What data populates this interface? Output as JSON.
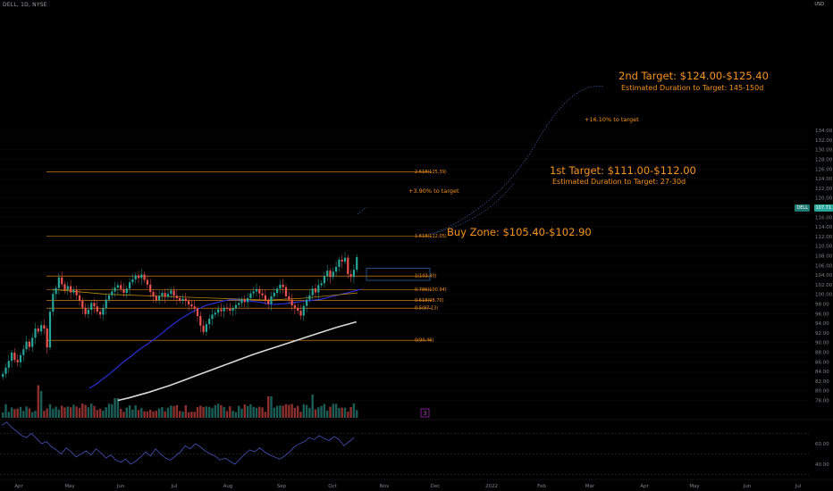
{
  "header": {
    "symbol": "DELL, 1D, NYSE",
    "currency": "USD"
  },
  "price_tag": {
    "symbol": "DELL",
    "price": "107.71"
  },
  "annotations": {
    "target2_title": "2nd Target: $124.00-$125.40",
    "target2_duration": "Estimated Duration to Target: 145-150d",
    "target1_title": "1st Target: $111.00-$112.00",
    "target1_duration": "Estimated Duration to Target: 27-30d",
    "buy_zone": "Buy Zone: $105.40-$102.90",
    "pct_16": "+16.10% to target",
    "pct_39": "+3.90% to target"
  },
  "indicator_badge": "3",
  "colors": {
    "up": "#26a69a",
    "down": "#ef5350",
    "fib": "#f7931e",
    "ma_blue": "#2a2fd6",
    "ma_white": "#d9d9d9",
    "ma_orange": "#b8860b",
    "rsi": "#4a5fd0",
    "buy_box": "#2e5f9e"
  },
  "chart_data": {
    "type": "candlestick",
    "x_ticks": [
      "Apr",
      "May",
      "Jun",
      "Jul",
      "Aug",
      "Sep",
      "Oct",
      "Nov",
      "Dec",
      "2022",
      "Feb",
      "Mar",
      "Apr",
      "May",
      "Jun",
      "Jul"
    ],
    "y_ticks": [
      78.0,
      80.0,
      82.0,
      84.0,
      86.0,
      88.0,
      90.0,
      92.0,
      94.0,
      96.0,
      98.0,
      100.0,
      102.0,
      104.0,
      106.0,
      108.0,
      110.0,
      112.0,
      114.0,
      116.0,
      118.0,
      120.0,
      122.0,
      124.0,
      126.0,
      128.0,
      130.0,
      132.0,
      134.0
    ],
    "rsi_ticks": [
      40.0,
      60.0
    ],
    "ylim": [
      77,
      135
    ],
    "fib_levels": [
      {
        "label": "2.618(125.39)",
        "value": 125.39
      },
      {
        "label": "1.618(112.05)",
        "value": 112.05
      },
      {
        "label": "1(103.80)",
        "value": 103.8
      },
      {
        "label": "0.786(100.94)",
        "value": 100.94
      },
      {
        "label": "0.618(98.70)",
        "value": 98.7
      },
      {
        "label": "0.5(97.13)",
        "value": 97.13
      },
      {
        "label": "0(90.46)",
        "value": 90.46
      }
    ],
    "buy_zone": [
      102.9,
      105.4
    ],
    "targets": [
      {
        "name": "1st Target",
        "low": 111.0,
        "high": 112.0
      },
      {
        "name": "2nd Target",
        "low": 124.0,
        "high": 125.4
      }
    ],
    "close": [
      83.5,
      84.8,
      86.2,
      87.9,
      86.4,
      85.9,
      87.4,
      88.6,
      90.2,
      89.1,
      91.0,
      92.9,
      92.3,
      93.6,
      92.9,
      89.0,
      96.4,
      100.1,
      101.3,
      103.5,
      102.1,
      101.0,
      101.7,
      100.4,
      100.9,
      99.8,
      98.7,
      97.2,
      95.9,
      96.8,
      98.2,
      97.5,
      96.4,
      95.8,
      97.1,
      98.9,
      99.8,
      100.6,
      101.4,
      101.9,
      101.1,
      100.3,
      101.2,
      102.5,
      103.1,
      103.9,
      103.4,
      104.1,
      103.0,
      102.0,
      100.5,
      99.6,
      98.8,
      99.7,
      100.3,
      99.5,
      100.1,
      100.8,
      99.7,
      99.2,
      98.7,
      99.1,
      98.6,
      97.9,
      97.5,
      97.0,
      95.5,
      93.5,
      92.2,
      93.8,
      94.9,
      95.8,
      96.2,
      96.9,
      96.5,
      97.2,
      97.0,
      96.6,
      97.1,
      97.8,
      98.2,
      98.9,
      98.4,
      99.2,
      100.2,
      100.6,
      101.1,
      100.2,
      99.8,
      98.7,
      98.0,
      99.6,
      100.3,
      101.2,
      102.0,
      101.5,
      99.6,
      98.9,
      97.7,
      97.2,
      96.6,
      95.6,
      97.6,
      98.9,
      99.8,
      101.2,
      100.4,
      101.9,
      102.3,
      103.8,
      104.9,
      103.6,
      104.7,
      105.7,
      107.2,
      106.8,
      107.6,
      104.2,
      103.6,
      105.1,
      107.7
    ],
    "ma50": [
      80.5,
      81.0,
      81.5,
      82.2,
      82.8,
      83.4,
      84.1,
      84.8,
      85.5,
      86.2,
      86.8,
      87.4,
      88.1,
      88.7,
      89.3,
      89.8,
      90.4,
      91.0,
      91.6,
      92.3,
      93.0,
      93.6,
      94.2,
      94.8,
      95.3,
      95.8,
      96.3,
      96.7,
      97.1,
      97.5,
      97.8,
      98.0,
      98.2,
      98.4,
      98.6,
      98.8,
      98.9,
      98.9,
      98.9,
      98.8,
      98.7,
      98.6,
      98.5,
      98.4,
      98.3,
      98.1,
      98.0,
      97.9,
      98.0,
      98.0,
      98.1,
      98.2,
      98.3,
      98.4,
      98.5,
      98.6,
      98.7,
      98.8,
      98.9,
      99.0,
      99.2,
      99.4,
      99.6,
      99.8,
      100.0,
      100.2,
      100.4,
      100.6,
      100.8,
      101.1
    ],
    "ma200": [
      78.0,
      78.5,
      79.1,
      79.7,
      80.4,
      81.1,
      81.9,
      82.7,
      83.5,
      84.3,
      85.1,
      85.9,
      86.7,
      87.5,
      88.2,
      88.9,
      89.6,
      90.3,
      91.0,
      91.7,
      92.4,
      93.1,
      93.7,
      94.3
    ],
    "rsi": [
      78,
      81,
      76,
      72,
      68,
      66,
      70,
      65,
      60,
      62,
      57,
      54,
      50,
      56,
      52,
      47,
      50,
      53,
      49,
      55,
      51,
      46,
      49,
      44,
      42,
      45,
      40,
      43,
      47,
      52,
      48,
      55,
      50,
      46,
      44,
      48,
      52,
      58,
      55,
      60,
      57,
      53,
      50,
      48,
      44,
      46,
      43,
      40,
      45,
      50,
      54,
      52,
      56,
      52,
      49,
      47,
      45,
      48,
      52,
      57,
      60,
      62,
      66,
      64,
      68,
      65,
      63,
      67,
      64,
      58,
      62,
      66
    ]
  }
}
